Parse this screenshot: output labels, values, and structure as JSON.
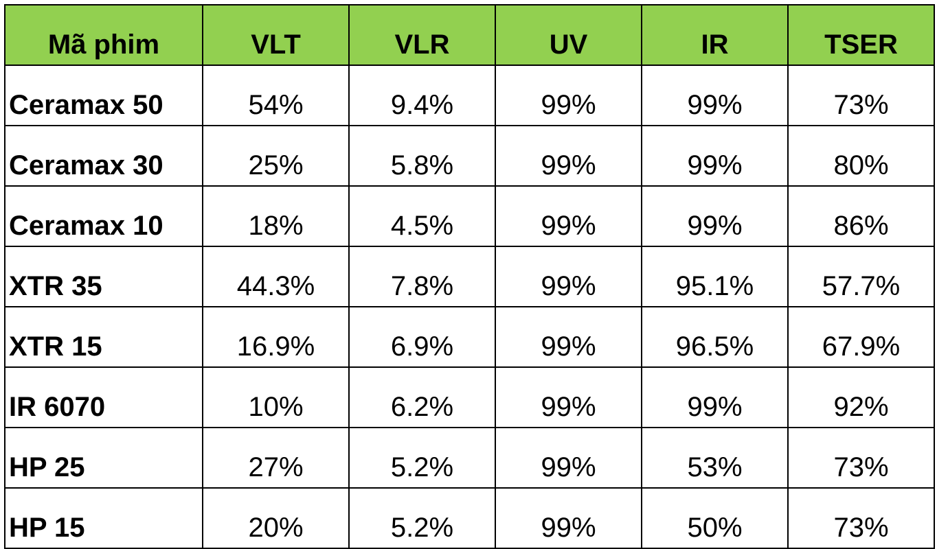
{
  "table": {
    "headers": [
      "Mã phim",
      "VLT",
      "VLR",
      "UV",
      "IR",
      "TSER"
    ],
    "rows": [
      [
        "Ceramax 50",
        "54%",
        "9.4%",
        "99%",
        "99%",
        "73%"
      ],
      [
        "Ceramax 30",
        "25%",
        "5.8%",
        "99%",
        "99%",
        "80%"
      ],
      [
        "Ceramax 10",
        "18%",
        "4.5%",
        "99%",
        "99%",
        "86%"
      ],
      [
        "XTR 35",
        "44.3%",
        "7.8%",
        "99%",
        "95.1%",
        "57.7%"
      ],
      [
        "XTR 15",
        "16.9%",
        "6.9%",
        "99%",
        "96.5%",
        "67.9%"
      ],
      [
        "IR 6070",
        "10%",
        "6.2%",
        "99%",
        "99%",
        "92%"
      ],
      [
        "HP 25",
        "27%",
        "5.2%",
        "99%",
        "53%",
        "73%"
      ],
      [
        "HP 15",
        "20%",
        "5.2%",
        "99%",
        "50%",
        "73%"
      ]
    ]
  },
  "colors": {
    "header_background": "#92d050",
    "border": "#000000",
    "text": "#000000"
  }
}
